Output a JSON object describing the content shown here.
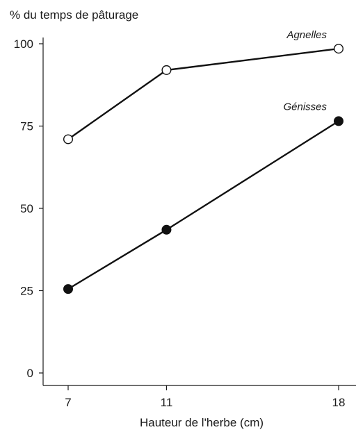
{
  "chart_data": {
    "type": "line",
    "title": "",
    "ylabel": "% du temps de pâturage",
    "xlabel": "Hauteur  de l'herbe (cm)",
    "x": [
      7,
      11,
      18
    ],
    "xticks": [
      "7",
      "11",
      "18"
    ],
    "yticks": [
      "0",
      "25",
      "50",
      "75",
      "100"
    ],
    "ylim": [
      0,
      100
    ],
    "grid": false,
    "legend": "none",
    "series": [
      {
        "name": "Agnelles",
        "values": [
          71,
          92,
          98.5
        ],
        "marker": "open-circle",
        "color": "#111111"
      },
      {
        "name": "Génisses",
        "values": [
          25.5,
          43.5,
          76.5
        ],
        "marker": "filled-circle",
        "color": "#111111"
      }
    ]
  }
}
